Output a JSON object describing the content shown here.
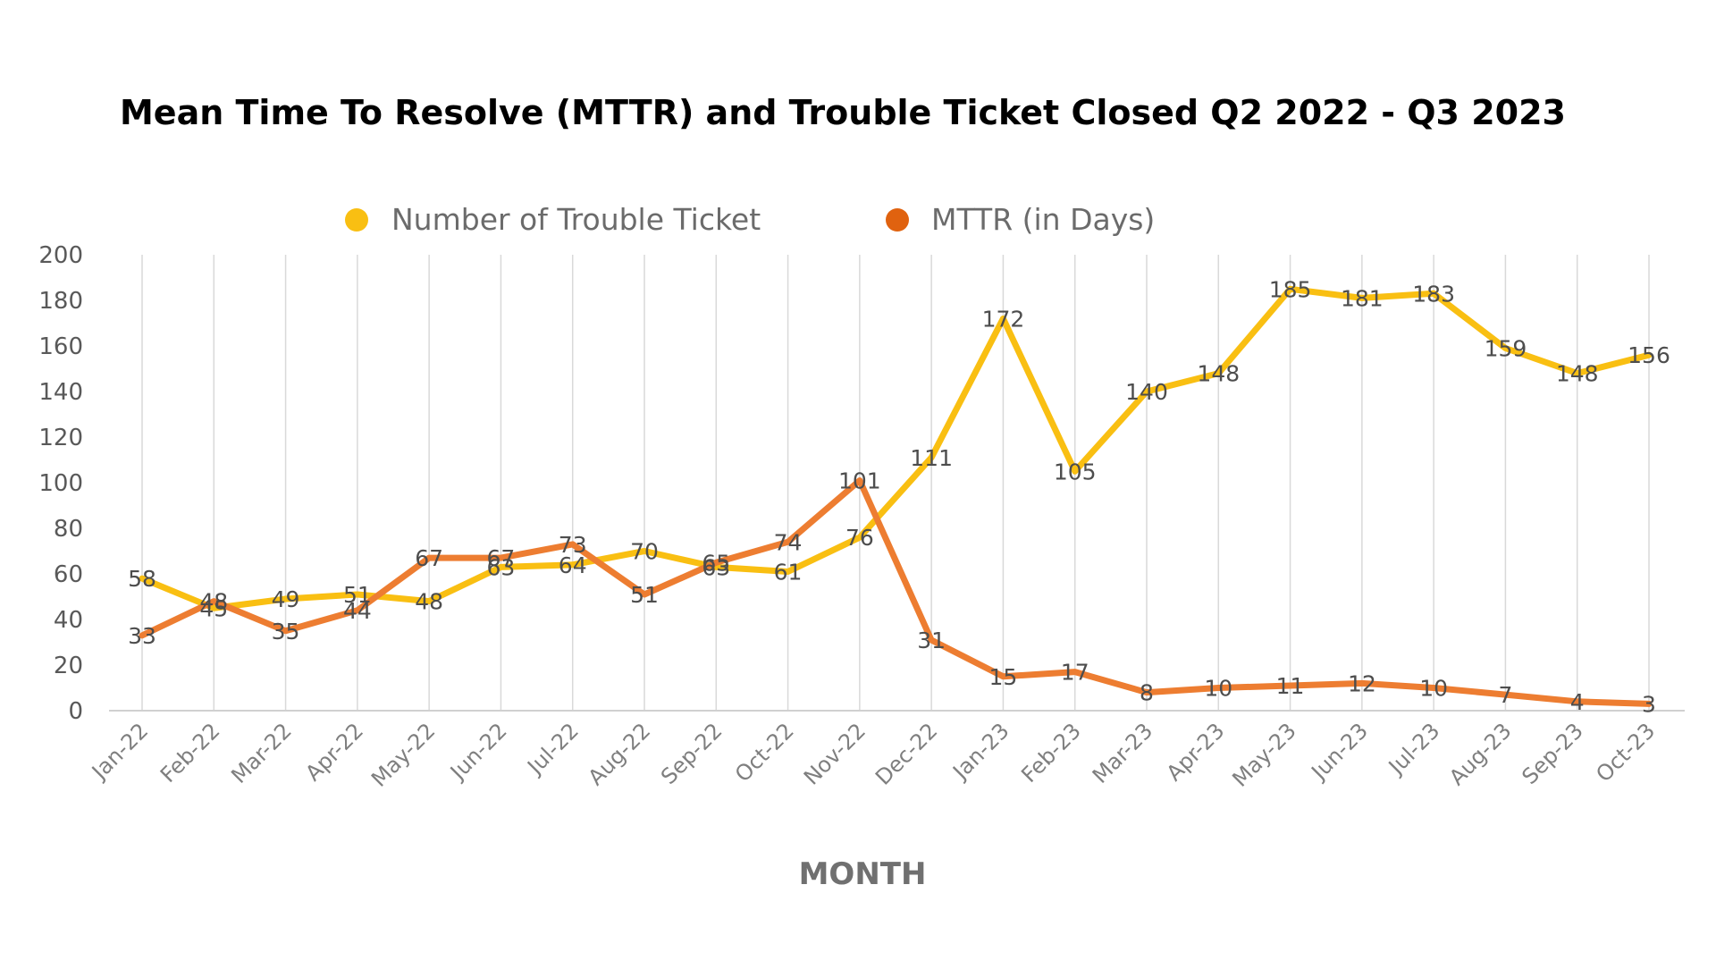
{
  "chart_data": {
    "type": "line",
    "title": "Mean Time To Resolve (MTTR) and Trouble Ticket Closed Q2 2022 - Q3 2023",
    "xlabel": "MONTH",
    "ylabel": "",
    "ylim": [
      0,
      200
    ],
    "yticks": [
      0,
      20,
      40,
      60,
      80,
      100,
      120,
      140,
      160,
      180,
      200
    ],
    "grid": "vertical",
    "legend_position": "top",
    "categories": [
      "Jan-22",
      "Feb-22",
      "Mar-22",
      "Apr-22",
      "May-22",
      "Jun-22",
      "Jul-22",
      "Aug-22",
      "Sep-22",
      "Oct-22",
      "Nov-22",
      "Dec-22",
      "Jan-23",
      "Feb-23",
      "Mar-23",
      "Apr-23",
      "May-23",
      "Jun-23",
      "Jul-23",
      "Aug-23",
      "Sep-23",
      "Oct-23"
    ],
    "series": [
      {
        "name": "Number of Trouble Ticket",
        "color": "#F9BF12",
        "values": [
          58,
          45,
          49,
          51,
          48,
          63,
          64,
          70,
          63,
          61,
          76,
          111,
          172,
          105,
          140,
          148,
          185,
          181,
          183,
          159,
          148,
          156
        ]
      },
      {
        "name": "MTTR (in Days)",
        "color": "#ED7D31",
        "values": [
          33,
          48,
          35,
          44,
          67,
          67,
          73,
          51,
          65,
          74,
          101,
          31,
          15,
          17,
          8,
          10,
          11,
          12,
          10,
          7,
          4,
          3
        ]
      }
    ],
    "legend_marker_colors": [
      "#F9BF12",
      "#E0620F"
    ]
  }
}
